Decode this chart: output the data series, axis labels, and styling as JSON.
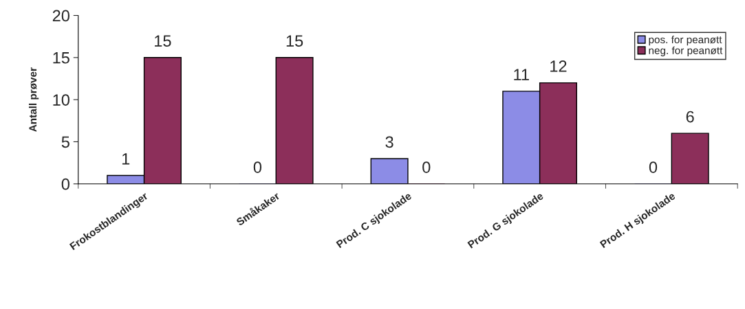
{
  "chart_data": {
    "type": "bar",
    "ylabel": "Antall prøver",
    "categories": [
      "Frokostblandinger",
      "Småkaker",
      "Prod. C sjokolade",
      "Prod. G sjokolade",
      "Prod. H sjokolade"
    ],
    "series": [
      {
        "name": "pos. for peanøtt",
        "color": "#8c8ce6",
        "values": [
          1,
          0,
          3,
          11,
          0
        ]
      },
      {
        "name": "neg. for peanøtt",
        "color": "#8c2f5a",
        "values": [
          15,
          15,
          0,
          12,
          6
        ]
      }
    ],
    "ylim": [
      0,
      20
    ],
    "yticks": [
      0,
      5,
      10,
      15,
      20
    ],
    "data_labels": true,
    "legend": "top right",
    "grid": false
  }
}
